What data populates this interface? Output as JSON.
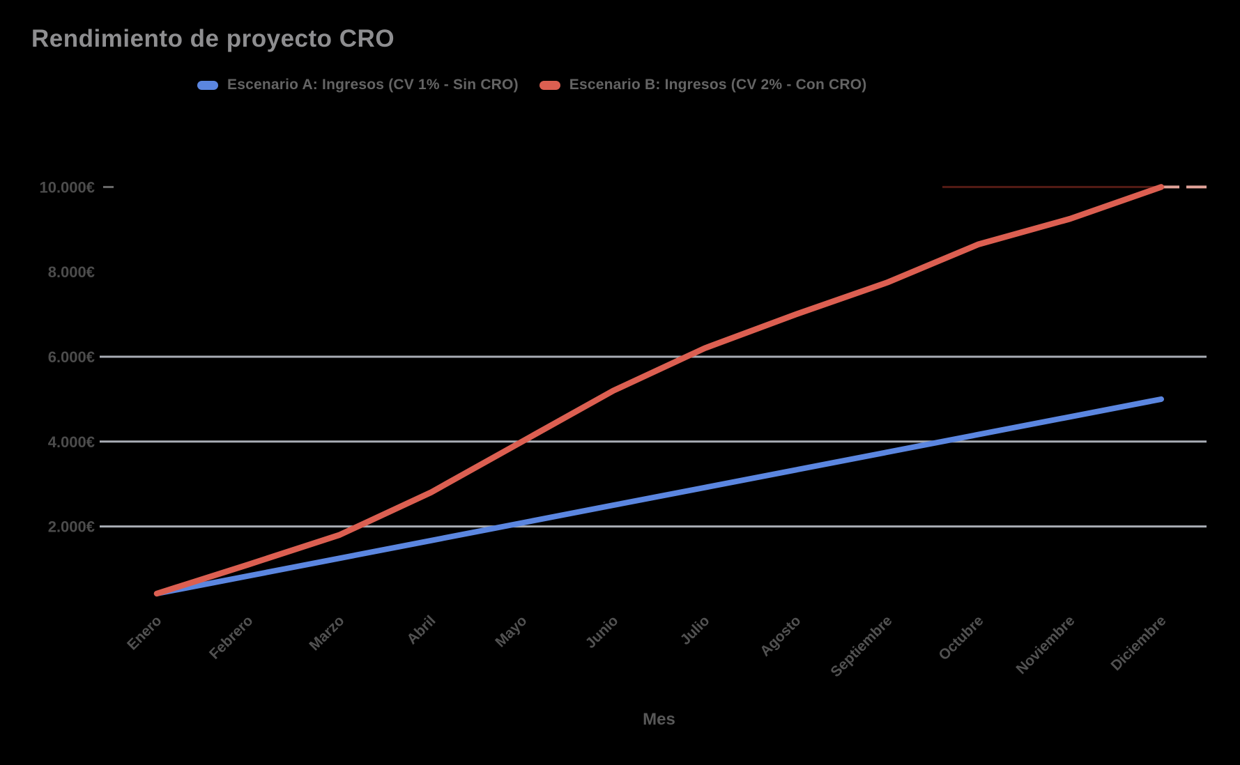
{
  "page": {
    "background": "#000000"
  },
  "header": {
    "title": "Rendimiento de proyecto CRO"
  },
  "chart_data": {
    "type": "line",
    "title": "Rendimiento de proyecto CRO",
    "xlabel": "Mes",
    "ylabel": "",
    "categories": [
      "Enero",
      "Febrero",
      "Marzo",
      "Abril",
      "Mayo",
      "Junio",
      "Julio",
      "Agosto",
      "Septiembre",
      "Octubre",
      "Noviembre",
      "Diciembre"
    ],
    "series": [
      {
        "name": "Escenario A: Ingresos (CV 1% - Sin CRO)",
        "color": "#5b86e0",
        "values": [
          417,
          833,
          1250,
          1667,
          2083,
          2500,
          2917,
          3333,
          3750,
          4167,
          4583,
          5000
        ]
      },
      {
        "name": "Escenario B: Ingresos (CV 2% - Con CRO)",
        "color": "#dc5f51",
        "values": [
          417,
          1100,
          1800,
          2800,
          4000,
          5200,
          6200,
          7000,
          7750,
          8650,
          9250,
          10000
        ]
      }
    ],
    "y_ticks": [
      {
        "label": "2.000€",
        "value": 2000,
        "gridline": true
      },
      {
        "label": "4.000€",
        "value": 4000,
        "gridline": true
      },
      {
        "label": "6.000€",
        "value": 6000,
        "gridline": true
      },
      {
        "label": "8.000€",
        "value": 8000,
        "gridline": false
      },
      {
        "label": "10.000€",
        "value": 10000,
        "gridline": false
      }
    ],
    "ylim": [
      0,
      10300
    ],
    "grid": "horizontal",
    "legend_position": "top",
    "currency": "€"
  }
}
